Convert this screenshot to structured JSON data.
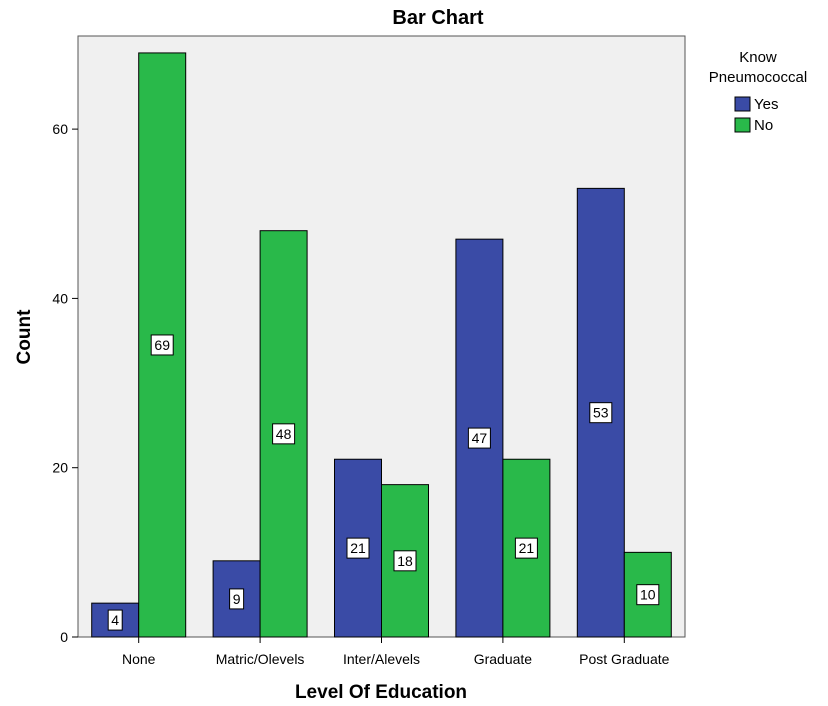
{
  "chart_data": {
    "type": "bar",
    "title": "Bar Chart",
    "xlabel": "Level Of Education",
    "ylabel": "Count",
    "ylim": [
      0,
      71
    ],
    "yticks": [
      0,
      20,
      40,
      60
    ],
    "categories": [
      "None",
      "Matric/Olevels",
      "Inter/Alevels",
      "Graduate",
      "Post Graduate"
    ],
    "legend": {
      "title_lines": [
        "Know",
        "Pneumococcal"
      ],
      "placement": "right"
    },
    "series": [
      {
        "name": "Yes",
        "color": "#3a4ba6",
        "values": [
          4,
          9,
          21,
          47,
          53
        ]
      },
      {
        "name": "No",
        "color": "#29b94a",
        "values": [
          69,
          48,
          18,
          21,
          10
        ]
      }
    ],
    "plot_background": "#f0f0f0",
    "grid": false
  }
}
